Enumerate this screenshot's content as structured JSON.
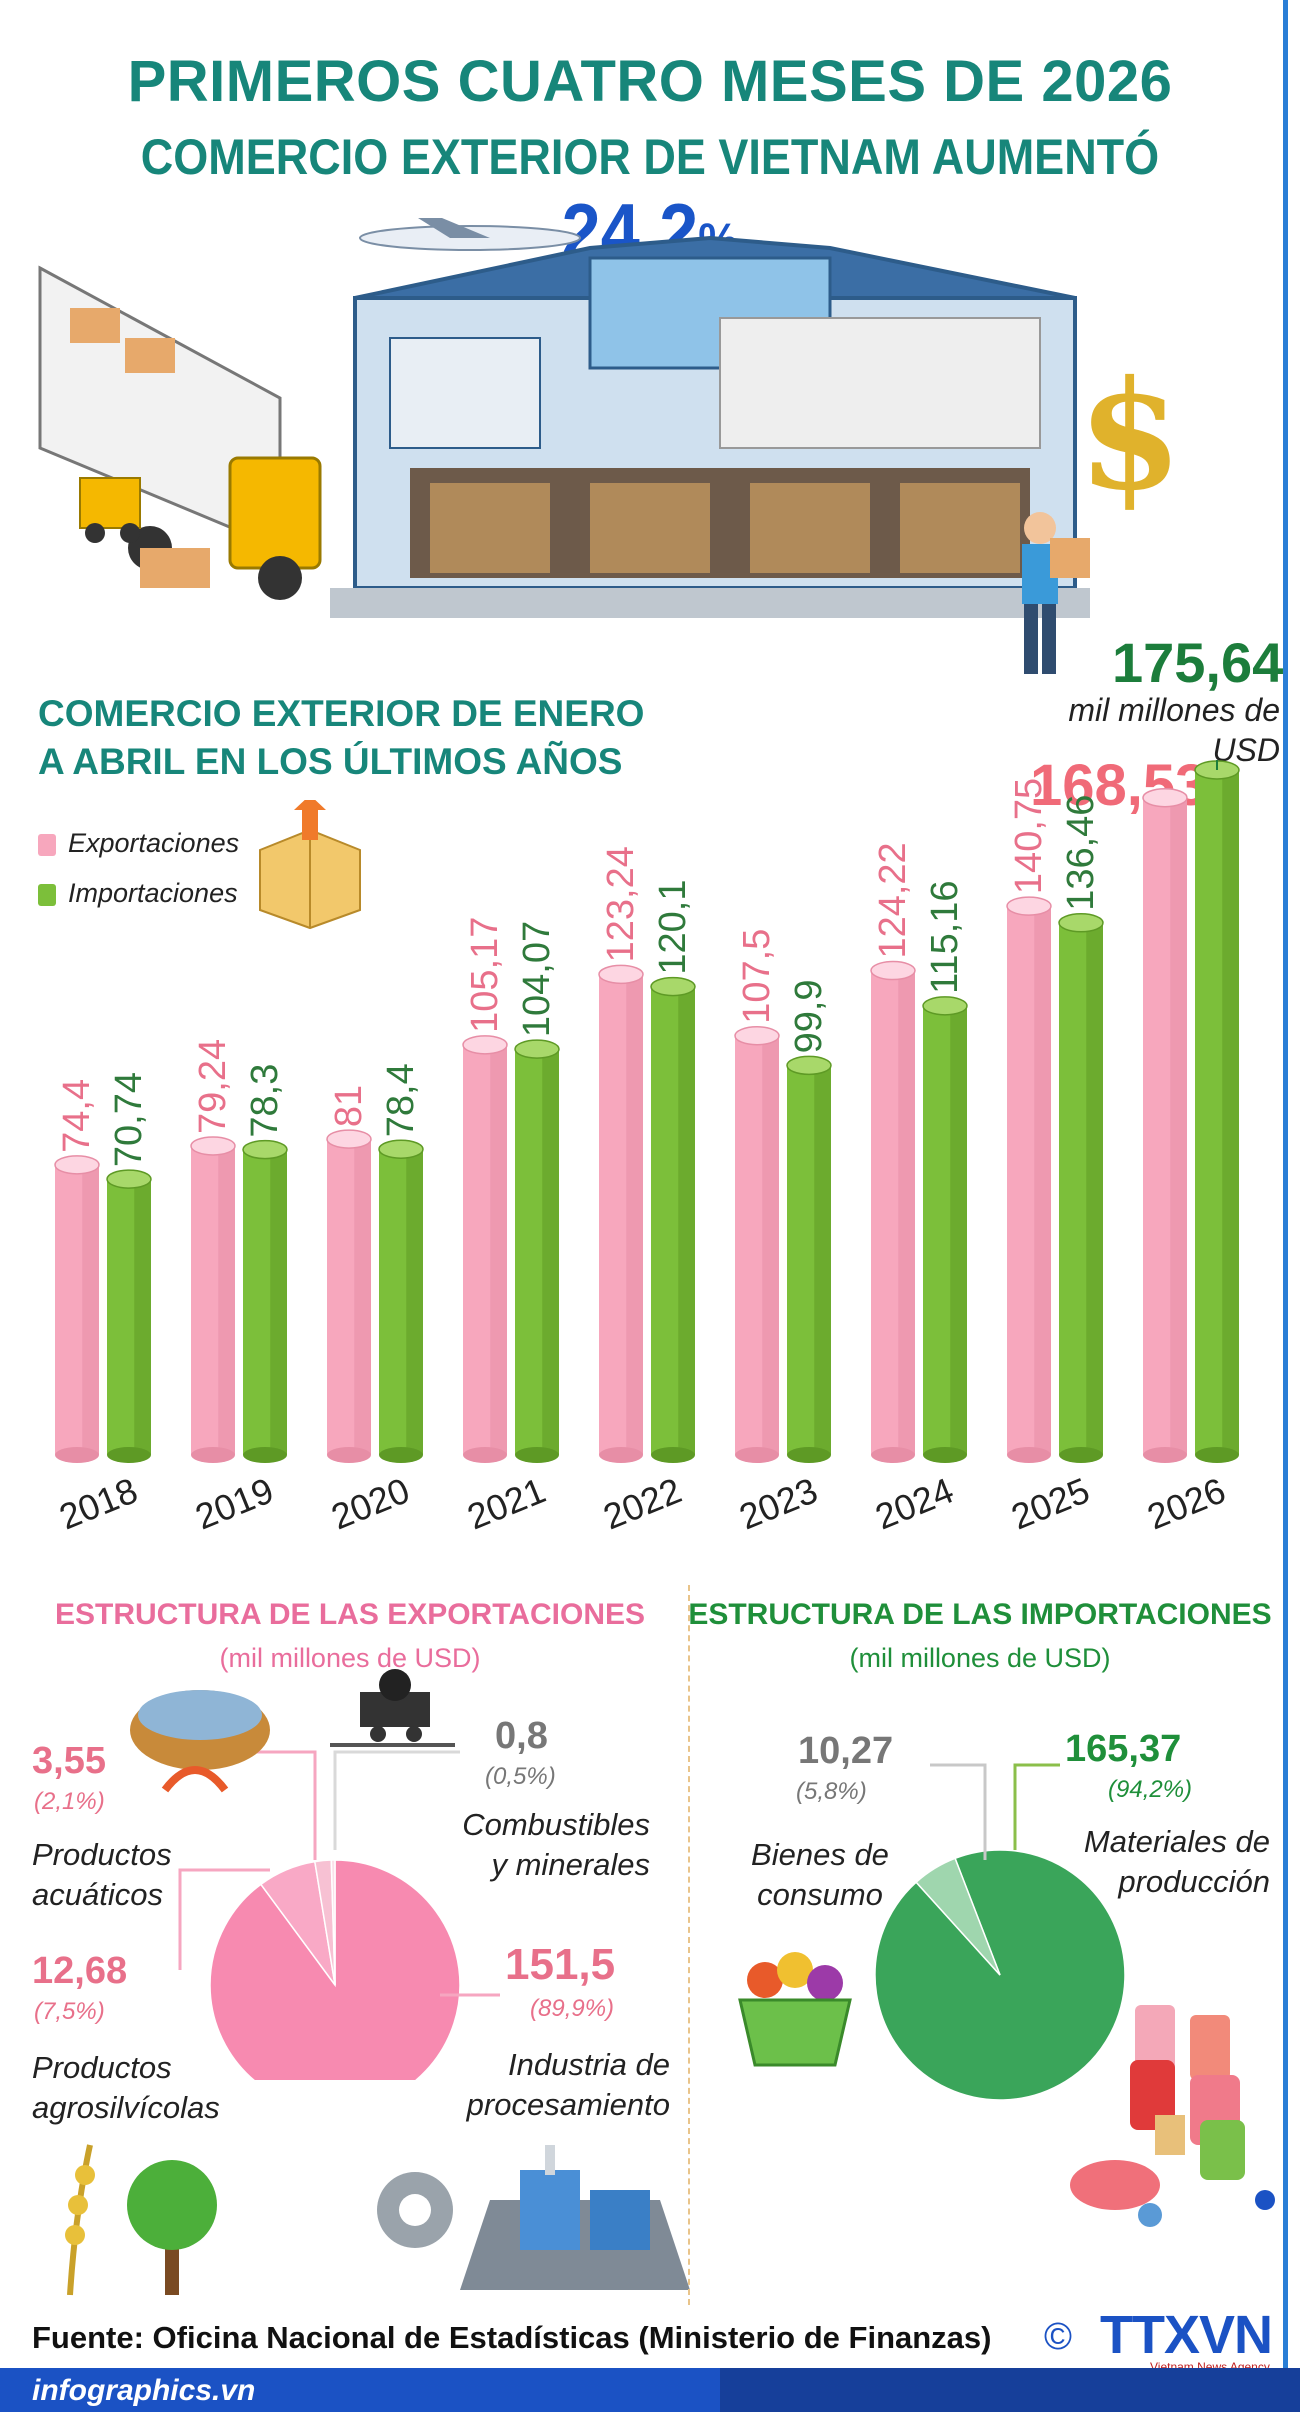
{
  "header": {
    "title": "PRIMEROS CUATRO MESES DE 2026",
    "subtitle_text": "COMERCIO EXTERIOR DE VIETNAM AUMENTÓ",
    "subtitle_value": "24,2",
    "subtitle_sign": "%"
  },
  "section1": {
    "title": "COMERCIO EXTERIOR DE ENERO A ABRIL EN LOS ÚLTIMOS AÑOS",
    "legend_exports": "Exportaciones",
    "legend_imports": "Importaciones",
    "total_2026_value": "175,64",
    "total_2026_unit": "mil millones de USD",
    "exports_2026_value": "168,53"
  },
  "colors": {
    "exports": "#f7a7bd",
    "imports": "#7cbf3a",
    "title_teal": "#17867a",
    "export_label": "#e8708a",
    "import_label": "#2f7a3b",
    "accent_blue": "#1a55c8"
  },
  "chart_data": [
    {
      "type": "bar",
      "title": "COMERCIO EXTERIOR DE ENERO A ABRIL EN LOS ÚLTIMOS AÑOS",
      "categories": [
        "2018",
        "2019",
        "2020",
        "2021",
        "2022",
        "2023",
        "2024",
        "2025",
        "2026"
      ],
      "series": [
        {
          "name": "Exportaciones",
          "values": [
            74.4,
            79.24,
            81,
            105.17,
            123.24,
            107.5,
            124.22,
            140.75,
            168.53
          ],
          "labels": [
            "74,4",
            "79,24",
            "81",
            "105,17",
            "123,24",
            "107,5",
            "124,22",
            "140,75",
            "168,53"
          ]
        },
        {
          "name": "Importaciones",
          "values": [
            70.74,
            78.3,
            78.4,
            104.07,
            120.1,
            99.9,
            115.16,
            136.46,
            175.64
          ],
          "labels": [
            "70,74",
            "78,3",
            "78,4",
            "104,07",
            "120,1",
            "99,9",
            "115,16",
            "136,46",
            "175,64"
          ]
        }
      ],
      "legend": "top-left",
      "grid": false
    },
    {
      "type": "pie",
      "title": "ESTRUCTURA DE LAS EXPORTACIONES",
      "unit": "(mil millones de USD)",
      "slices": [
        {
          "name": "Industria de procesamiento",
          "value": 151.5,
          "label": "151,5",
          "pct": "(89,9%)",
          "color": "#f78ab0"
        },
        {
          "name": "Productos agrosilvícolas",
          "value": 12.68,
          "label": "12,68",
          "pct": "(7,5%)",
          "color": "#f9a9c6"
        },
        {
          "name": "Productos acuáticos",
          "value": 3.55,
          "label": "3,55",
          "pct": "(2,1%)",
          "color": "#f7c1d3"
        },
        {
          "name": "Combustibles y minerales",
          "value": 0.8,
          "label": "0,8",
          "pct": "(0,5%)",
          "color": "#fbe0ea"
        }
      ]
    },
    {
      "type": "pie",
      "title": "ESTRUCTURA DE LAS IMPORTACIONES",
      "unit": "(mil millones de USD)",
      "slices": [
        {
          "name": "Materiales de producción",
          "value": 165.37,
          "label": "165,37",
          "pct": "(94,2%)",
          "color": "#3aa55a"
        },
        {
          "name": "Bienes de consumo",
          "value": 10.27,
          "label": "10,27",
          "pct": "(5,8%)",
          "color": "#9fd6ae"
        }
      ]
    }
  ],
  "exports_structure": {
    "title": "ESTRUCTURA DE LAS EXPORTACIONES",
    "unit": "(mil millones de USD)",
    "aquatic": {
      "value": "3,55",
      "pct": "(2,1%)",
      "name_1": "Productos",
      "name_2": "acuáticos"
    },
    "fuels": {
      "value": "0,8",
      "pct": "(0,5%)",
      "name_1": "Combustibles",
      "name_2": "y minerales"
    },
    "agro": {
      "value": "12,68",
      "pct": "(7,5%)",
      "name_1": "Productos",
      "name_2": "agrosilvícolas"
    },
    "processing": {
      "value": "151,5",
      "pct": "(89,9%)",
      "name_1": "Industria de",
      "name_2": "procesamiento"
    }
  },
  "imports_structure": {
    "title": "ESTRUCTURA DE LAS IMPORTACIONES",
    "unit": "(mil millones de USD)",
    "consumer": {
      "value": "10,27",
      "pct": "(5,8%)",
      "name_1": "Bienes de",
      "name_2": "consumo"
    },
    "production": {
      "value": "165,37",
      "pct": "(94,2%)",
      "name_1": "Materiales de",
      "name_2": "producción"
    }
  },
  "footer": {
    "source": "Fuente: Oficina Nacional de Estadísticas (Ministerio de Finanzas)",
    "site": "infographics.vn",
    "copyright": "©",
    "logo": "TTXVN",
    "logo_sub": "Vietnam News Agency"
  }
}
